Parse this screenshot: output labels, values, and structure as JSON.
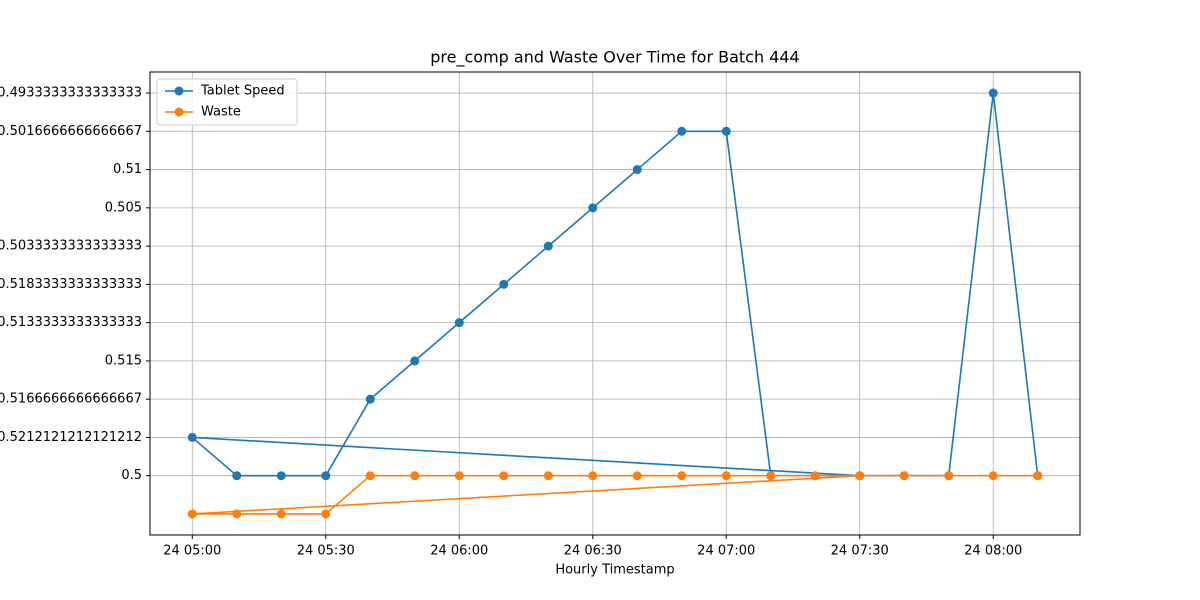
{
  "chart_data": {
    "type": "line",
    "title": "pre_comp and Waste Over Time for Batch 444",
    "xlabel": "Hourly Timestamp",
    "x": [
      "24 07:30",
      "24 05:00",
      "24 05:10",
      "24 05:20",
      "24 05:30",
      "24 05:40",
      "24 05:50",
      "24 06:00",
      "24 06:10",
      "24 06:20",
      "24 06:30",
      "24 06:40",
      "24 06:50",
      "24 07:00",
      "24 07:10",
      "24 07:20",
      "24 07:40",
      "24 07:50",
      "24 08:00",
      "24 08:10"
    ],
    "series": [
      {
        "name": "Tablet Speed",
        "color": "#1f77b4",
        "values": [
          1,
          2,
          1,
          1,
          1,
          3,
          4,
          5,
          6,
          7,
          8,
          9,
          10,
          10,
          1,
          1,
          1,
          1,
          11,
          1
        ]
      },
      {
        "name": "Waste",
        "color": "#ff7f0e",
        "values": [
          1,
          0,
          0,
          0,
          0,
          1,
          1,
          1,
          1,
          1,
          1,
          1,
          1,
          1,
          1,
          1,
          1,
          1,
          1,
          1
        ]
      }
    ],
    "xlim": [
      "24 04:50:30",
      "24 08:19:30"
    ],
    "xticks": [
      "24 05:00",
      "24 05:30",
      "24 06:00",
      "24 06:30",
      "24 07:00",
      "24 07:30",
      "24 08:00"
    ],
    "ylim": [
      -0.55,
      11.55
    ],
    "yticks": [
      {
        "value": 1,
        "label": "0.5"
      },
      {
        "value": 2,
        "label": "0.5212121212121212"
      },
      {
        "value": 3,
        "label": "0.5166666666666667"
      },
      {
        "value": 4,
        "label": "0.515"
      },
      {
        "value": 5,
        "label": "0.5133333333333333"
      },
      {
        "value": 6,
        "label": "0.5183333333333333"
      },
      {
        "value": 7,
        "label": "0.5033333333333333"
      },
      {
        "value": 8,
        "label": "0.505"
      },
      {
        "value": 9,
        "label": "0.51"
      },
      {
        "value": 10,
        "label": "0.5016666666666667"
      },
      {
        "value": 11,
        "label": "0.4933333333333333"
      }
    ],
    "grid": true,
    "legend": "upper left"
  }
}
